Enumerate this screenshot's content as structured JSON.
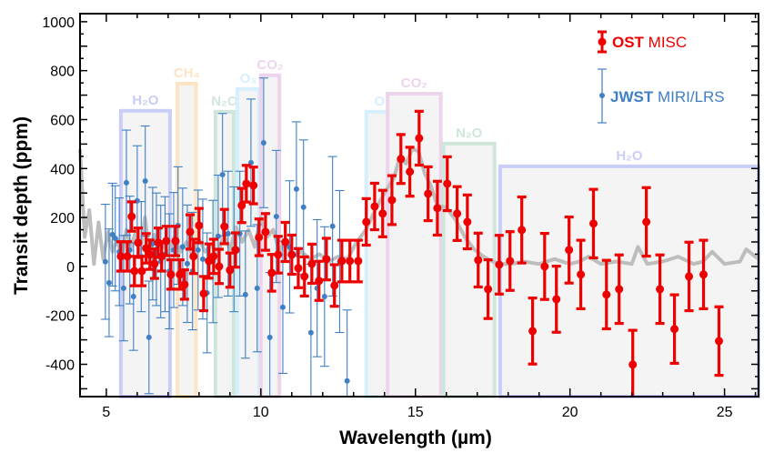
{
  "chart_data": {
    "type": "scatter",
    "title": "",
    "xlabel": "Wavelength (µm)",
    "ylabel": "Transit depth (ppm)",
    "xlim": [
      4.15,
      26.1
    ],
    "ylim": [
      -532,
      1033
    ],
    "xticks": [
      5,
      10,
      15,
      20,
      25
    ],
    "yticks": [
      -400,
      -200,
      0,
      200,
      400,
      600,
      800,
      1000
    ],
    "grid": false,
    "legend_position": "top-right",
    "bands": [
      {
        "label": "H₂O",
        "x0": 5.47,
        "x1": 7.06,
        "top": 636,
        "color": "#c9cef6"
      },
      {
        "label": "CH₄",
        "x0": 7.3,
        "x1": 7.9,
        "top": 747,
        "color": "#fde4c2"
      },
      {
        "label": "N₂O",
        "x0": 8.53,
        "x1": 9.12,
        "top": 632,
        "color": "#cfe7da"
      },
      {
        "label": "O₃",
        "x0": 9.24,
        "x1": 9.94,
        "top": 725,
        "color": "#d6effc"
      },
      {
        "label": "CO₂",
        "x0": 10.0,
        "x1": 10.6,
        "top": 781,
        "color": "#ecd4ec"
      },
      {
        "label": "O₃",
        "x0": 13.41,
        "x1": 14.47,
        "top": 632,
        "color": "#d6effc"
      },
      {
        "label": "CO₂",
        "x0": 14.1,
        "x1": 15.82,
        "top": 706,
        "color": "#ecd4ec"
      },
      {
        "label": "N₂O",
        "x0": 15.91,
        "x1": 17.56,
        "top": 502,
        "color": "#cfe7da"
      },
      {
        "label": "H₂O",
        "x0": 17.74,
        "x1": 26.1,
        "top": 409,
        "color": "#c9cef6"
      }
    ],
    "model": {
      "name": "model spectrum",
      "color": "#bdbdbd",
      "x": [
        4.15,
        4.3,
        4.45,
        4.6,
        4.75,
        4.9,
        5.05,
        5.2,
        5.35,
        5.5,
        5.65,
        5.8,
        5.95,
        6.1,
        6.25,
        6.4,
        6.55,
        6.7,
        6.85,
        7.0,
        7.2,
        7.4,
        7.6,
        7.8,
        8.0,
        8.2,
        8.4,
        8.6,
        8.8,
        9.0,
        9.2,
        9.4,
        9.6,
        9.8,
        10.0,
        10.2,
        10.4,
        10.6,
        10.8,
        11.0,
        11.3,
        11.6,
        11.9,
        12.2,
        12.5,
        12.8,
        13.1,
        13.4,
        13.7,
        14.0,
        14.3,
        14.5,
        14.7,
        14.9,
        15.1,
        15.3,
        15.5,
        15.7,
        16.0,
        16.3,
        16.6,
        16.9,
        17.2,
        17.5,
        17.8,
        18.1,
        18.5,
        19.0,
        19.5,
        20.0,
        20.3,
        20.6,
        21.0,
        21.5,
        22.0,
        22.2,
        22.5,
        23.0,
        23.5,
        24.0,
        24.3,
        24.6,
        25.0,
        25.5,
        25.7,
        26.1
      ],
      "y": [
        480,
        120,
        230,
        10,
        180,
        30,
        140,
        60,
        110,
        40,
        150,
        80,
        140,
        60,
        200,
        40,
        130,
        70,
        90,
        50,
        120,
        60,
        100,
        40,
        110,
        60,
        90,
        50,
        130,
        70,
        160,
        100,
        150,
        80,
        200,
        120,
        150,
        60,
        110,
        40,
        60,
        30,
        50,
        20,
        40,
        30,
        100,
        150,
        230,
        300,
        360,
        450,
        420,
        480,
        470,
        380,
        330,
        250,
        240,
        190,
        120,
        70,
        40,
        20,
        10,
        10,
        20,
        10,
        30,
        10,
        20,
        40,
        10,
        20,
        10,
        80,
        10,
        20,
        40,
        10,
        20,
        60,
        10,
        20,
        70,
        30
      ]
    },
    "series": [
      {
        "name": "OST MISC",
        "legend_bold": "OST",
        "legend_rest": " MISC",
        "color": "#ee0000",
        "x": [
          5.47,
          5.68,
          5.82,
          5.91,
          6.03,
          6.15,
          6.29,
          6.41,
          6.56,
          6.68,
          6.79,
          6.94,
          7.09,
          7.24,
          7.38,
          7.53,
          7.71,
          7.82,
          8.0,
          8.15,
          8.32,
          8.47,
          8.65,
          8.82,
          9.0,
          9.18,
          9.38,
          9.53,
          9.76,
          9.94,
          10.15,
          10.35,
          10.56,
          10.79,
          11.0,
          11.21,
          11.41,
          11.65,
          11.88,
          12.12,
          12.38,
          12.62,
          12.88,
          13.15,
          13.41,
          13.68,
          13.94,
          14.24,
          14.53,
          14.82,
          15.12,
          15.41,
          15.71,
          16.03,
          16.35,
          16.68,
          17.03,
          17.35,
          17.71,
          18.06,
          18.44,
          18.79,
          19.18,
          19.56,
          19.97,
          20.35,
          20.76,
          21.18,
          21.59,
          22.03,
          22.47,
          22.91,
          23.38,
          23.85,
          24.32,
          24.82
        ],
        "y": [
          41,
          41,
          204,
          -19,
          97,
          -19,
          74,
          48,
          11,
          97,
          41,
          104,
          -33,
          104,
          -33,
          -74,
          141,
          41,
          167,
          -111,
          22,
          41,
          0,
          163,
          -15,
          67,
          249,
          338,
          331,
          119,
          141,
          -26,
          48,
          100,
          48,
          -7,
          -41,
          11,
          -59,
          30,
          -78,
          22,
          22,
          22,
          182,
          245,
          216,
          271,
          439,
          387,
          524,
          297,
          238,
          338,
          216,
          182,
          26,
          -93,
          7,
          22,
          149,
          -264,
          0,
          -134,
          67,
          -33,
          175,
          -115,
          -93,
          -401,
          182,
          -93,
          -256,
          -41,
          -33,
          -305
        ],
        "err": [
          60,
          60,
          60,
          60,
          60,
          60,
          60,
          60,
          60,
          60,
          60,
          60,
          60,
          60,
          60,
          60,
          70,
          70,
          70,
          70,
          70,
          70,
          70,
          70,
          70,
          70,
          70,
          75,
          75,
          75,
          75,
          75,
          75,
          80,
          80,
          80,
          80,
          80,
          80,
          85,
          85,
          85,
          85,
          85,
          95,
          95,
          95,
          100,
          100,
          100,
          110,
          110,
          110,
          110,
          110,
          110,
          110,
          120,
          120,
          120,
          135,
          135,
          135,
          135,
          135,
          140,
          140,
          140,
          140,
          140,
          140,
          140,
          140,
          140,
          140,
          140
        ]
      },
      {
        "name": "JWST MIRI/LRS",
        "legend_bold": "JWST",
        "legend_rest": " MIRI/LRS",
        "color": "#3f7fc4",
        "x": [
          4.97,
          5.09,
          5.2,
          5.29,
          5.42,
          5.56,
          5.65,
          5.76,
          5.88,
          6.0,
          6.13,
          6.26,
          6.38,
          6.5,
          6.62,
          6.76,
          6.9,
          7.04,
          7.18,
          7.32,
          7.47,
          7.62,
          7.79,
          7.97,
          8.12,
          8.26,
          8.45,
          8.62,
          8.76,
          8.94,
          9.13,
          9.32,
          9.5,
          9.68,
          9.88,
          10.09,
          10.29,
          10.5,
          10.71,
          10.93,
          11.15,
          11.38,
          11.62,
          11.82,
          12.06,
          12.32,
          12.55,
          12.79
        ],
        "y": [
          19,
          -67,
          130,
          115,
          60,
          -89,
          342,
          67,
          -123,
          268,
          40,
          349,
          -290,
          93,
          70,
          20,
          50,
          -20,
          67,
          167,
          80,
          11,
          -19,
          67,
          30,
          -108,
          20,
          123,
          375,
          134,
          70,
          134,
          -115,
          424,
          -89,
          505,
          -290,
          204,
          -167,
          80,
          316,
          242,
          -271,
          -89,
          -123,
          164,
          20,
          -468
        ],
        "err": [
          235,
          220,
          210,
          215,
          220,
          215,
          215,
          220,
          220,
          225,
          225,
          225,
          230,
          230,
          230,
          230,
          235,
          235,
          235,
          240,
          240,
          240,
          240,
          245,
          245,
          245,
          250,
          250,
          250,
          255,
          255,
          255,
          260,
          260,
          260,
          265,
          265,
          270,
          270,
          270,
          275,
          275,
          280,
          280,
          285,
          285,
          290,
          290
        ]
      }
    ]
  }
}
